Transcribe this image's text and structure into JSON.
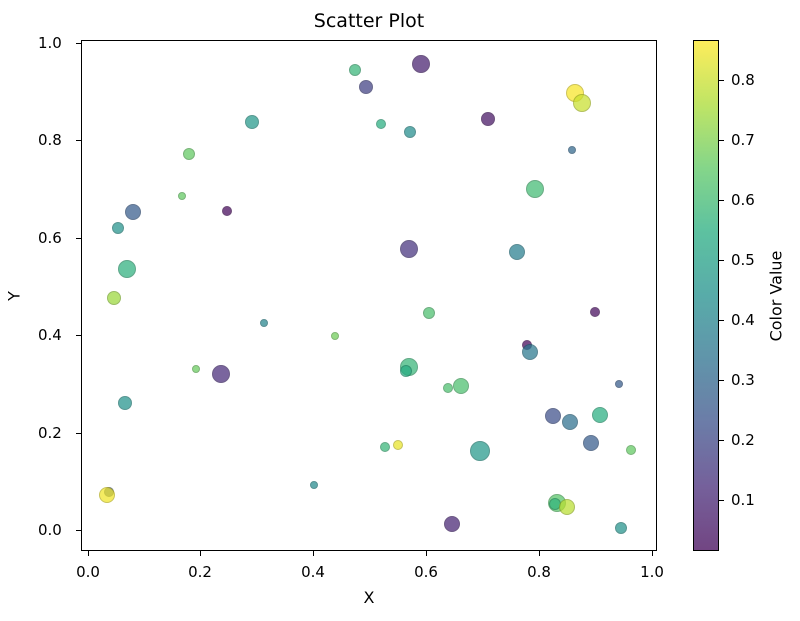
{
  "chart_data": {
    "type": "scatter",
    "title": "Scatter Plot",
    "xlabel": "X",
    "ylabel": "Y",
    "colorbar_label": "Color Value",
    "xlim": [
      -0.013,
      1.01
    ],
    "ylim": [
      -0.043,
      1.006
    ],
    "x_ticks": [
      "0.0",
      "0.2",
      "0.4",
      "0.6",
      "0.8",
      "1.0"
    ],
    "y_ticks": [
      "0.0",
      "0.2",
      "0.4",
      "0.6",
      "0.8",
      "1.0"
    ],
    "colorbar_ticks": [
      "0.1",
      "0.2",
      "0.3",
      "0.4",
      "0.5",
      "0.6",
      "0.7",
      "0.8"
    ],
    "colorbar_range": [
      0.015,
      0.867
    ],
    "colormap": "viridis",
    "alpha": 0.7,
    "grid": false,
    "legend": null,
    "points": [
      {
        "x": 0.291,
        "y": 0.838,
        "c": 0.47,
        "s": 7
      },
      {
        "x": 0.179,
        "y": 0.772,
        "c": 0.66,
        "s": 6
      },
      {
        "x": 0.167,
        "y": 0.686,
        "c": 0.66,
        "s": 4
      },
      {
        "x": 0.247,
        "y": 0.655,
        "c": 0.03,
        "s": 5
      },
      {
        "x": 0.08,
        "y": 0.653,
        "c": 0.26,
        "s": 8
      },
      {
        "x": 0.053,
        "y": 0.62,
        "c": 0.45,
        "s": 6
      },
      {
        "x": 0.474,
        "y": 0.945,
        "c": 0.58,
        "s": 6
      },
      {
        "x": 0.494,
        "y": 0.91,
        "c": 0.18,
        "s": 7
      },
      {
        "x": 0.591,
        "y": 0.957,
        "c": 0.09,
        "s": 9
      },
      {
        "x": 0.52,
        "y": 0.834,
        "c": 0.55,
        "s": 5
      },
      {
        "x": 0.572,
        "y": 0.817,
        "c": 0.43,
        "s": 6
      },
      {
        "x": 0.71,
        "y": 0.844,
        "c": 0.06,
        "s": 7
      },
      {
        "x": 0.865,
        "y": 0.897,
        "c": 0.86,
        "s": 9
      },
      {
        "x": 0.877,
        "y": 0.877,
        "c": 0.8,
        "s": 9
      },
      {
        "x": 0.86,
        "y": 0.78,
        "c": 0.3,
        "s": 4
      },
      {
        "x": 0.794,
        "y": 0.7,
        "c": 0.6,
        "s": 9
      },
      {
        "x": 0.069,
        "y": 0.536,
        "c": 0.56,
        "s": 9
      },
      {
        "x": 0.046,
        "y": 0.476,
        "c": 0.74,
        "s": 7
      },
      {
        "x": 0.313,
        "y": 0.425,
        "c": 0.4,
        "s": 4
      },
      {
        "x": 0.192,
        "y": 0.331,
        "c": 0.67,
        "s": 4
      },
      {
        "x": 0.236,
        "y": 0.32,
        "c": 0.12,
        "s": 9
      },
      {
        "x": 0.57,
        "y": 0.577,
        "c": 0.14,
        "s": 9
      },
      {
        "x": 0.606,
        "y": 0.446,
        "c": 0.62,
        "s": 6
      },
      {
        "x": 0.439,
        "y": 0.398,
        "c": 0.68,
        "s": 4
      },
      {
        "x": 0.57,
        "y": 0.335,
        "c": 0.58,
        "s": 9
      },
      {
        "x": 0.565,
        "y": 0.326,
        "c": 0.54,
        "s": 6
      },
      {
        "x": 0.762,
        "y": 0.571,
        "c": 0.38,
        "s": 8
      },
      {
        "x": 0.9,
        "y": 0.448,
        "c": 0.04,
        "s": 5
      },
      {
        "x": 0.78,
        "y": 0.38,
        "c": 0.03,
        "s": 5
      },
      {
        "x": 0.785,
        "y": 0.365,
        "c": 0.36,
        "s": 8
      },
      {
        "x": 0.943,
        "y": 0.3,
        "c": 0.26,
        "s": 4
      },
      {
        "x": 0.826,
        "y": 0.234,
        "c": 0.22,
        "s": 8
      },
      {
        "x": 0.856,
        "y": 0.222,
        "c": 0.33,
        "s": 8
      },
      {
        "x": 0.909,
        "y": 0.236,
        "c": 0.55,
        "s": 8
      },
      {
        "x": 0.066,
        "y": 0.261,
        "c": 0.45,
        "s": 7
      },
      {
        "x": 0.037,
        "y": 0.078,
        "c": 0.24,
        "s": 5
      },
      {
        "x": 0.034,
        "y": 0.072,
        "c": 0.85,
        "s": 8
      },
      {
        "x": 0.527,
        "y": 0.17,
        "c": 0.58,
        "s": 5
      },
      {
        "x": 0.551,
        "y": 0.175,
        "c": 0.84,
        "s": 5
      },
      {
        "x": 0.401,
        "y": 0.092,
        "c": 0.42,
        "s": 4
      },
      {
        "x": 0.647,
        "y": 0.012,
        "c": 0.1,
        "s": 8
      },
      {
        "x": 0.696,
        "y": 0.162,
        "c": 0.47,
        "s": 10
      },
      {
        "x": 0.893,
        "y": 0.179,
        "c": 0.26,
        "s": 8
      },
      {
        "x": 0.964,
        "y": 0.164,
        "c": 0.66,
        "s": 5
      },
      {
        "x": 0.833,
        "y": 0.055,
        "c": 0.64,
        "s": 9
      },
      {
        "x": 0.829,
        "y": 0.053,
        "c": 0.57,
        "s": 6
      },
      {
        "x": 0.851,
        "y": 0.047,
        "c": 0.78,
        "s": 8
      },
      {
        "x": 0.947,
        "y": 0.004,
        "c": 0.45,
        "s": 6
      },
      {
        "x": 0.639,
        "y": 0.292,
        "c": 0.62,
        "s": 5
      },
      {
        "x": 0.662,
        "y": 0.296,
        "c": 0.62,
        "s": 8
      }
    ]
  }
}
